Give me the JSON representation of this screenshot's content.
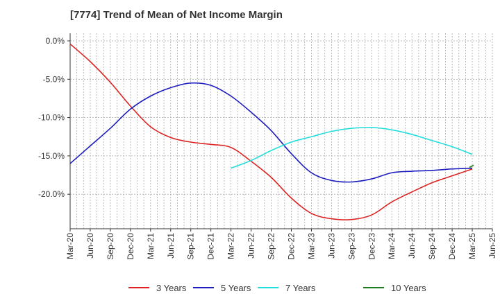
{
  "title": "[7774]  Trend of Mean of Net Income Margin",
  "chart_data": {
    "type": "line",
    "title": "[7774]  Trend of Mean of Net Income Margin",
    "xlabel": "",
    "ylabel": "",
    "ylim": [
      -23.5,
      0.0
    ],
    "y_ticks": [
      0.0,
      -5.0,
      -10.0,
      -15.0,
      -20.0
    ],
    "y_tick_labels": [
      "0.0%",
      "-5.0%",
      "-10.0%",
      "-15.0%",
      "-20.0%"
    ],
    "x_tick_labels": [
      "Mar-20",
      "Jun-20",
      "Sep-20",
      "Dec-20",
      "Mar-21",
      "Jun-21",
      "Sep-21",
      "Dec-21",
      "Mar-22",
      "Jun-22",
      "Sep-22",
      "Dec-22",
      "Mar-23",
      "Jun-23",
      "Sep-23",
      "Dec-23",
      "Mar-24",
      "Jun-24",
      "Sep-24",
      "Dec-24",
      "Mar-25",
      "Jun-25"
    ],
    "grid": true,
    "legend_position": "bottom",
    "series": [
      {
        "name": "3 Years",
        "color": "#dd2222",
        "x": [
          "Mar-20",
          "Jun-20",
          "Sep-20",
          "Dec-20",
          "Mar-21",
          "Jun-21",
          "Sep-21",
          "Dec-21",
          "Mar-22",
          "Jun-22",
          "Sep-22",
          "Dec-22",
          "Mar-23",
          "Jun-23",
          "Sep-23",
          "Dec-23",
          "Mar-24",
          "Jun-24",
          "Sep-24",
          "Dec-24",
          "Mar-25"
        ],
        "values": [
          -0.4,
          -2.7,
          -5.4,
          -8.5,
          -11.2,
          -12.6,
          -13.2,
          -13.5,
          -13.9,
          -15.7,
          -17.8,
          -20.5,
          -22.5,
          -23.2,
          -23.3,
          -22.7,
          -21.0,
          -19.7,
          -18.5,
          -17.6,
          -16.7
        ]
      },
      {
        "name": "5 Years",
        "color": "#1c1cbf",
        "x": [
          "Mar-20",
          "Jun-20",
          "Sep-20",
          "Dec-20",
          "Mar-21",
          "Jun-21",
          "Sep-21",
          "Dec-21",
          "Mar-22",
          "Jun-22",
          "Sep-22",
          "Dec-22",
          "Mar-23",
          "Jun-23",
          "Sep-23",
          "Dec-23",
          "Mar-24",
          "Jun-24",
          "Sep-24",
          "Dec-24",
          "Mar-25"
        ],
        "values": [
          -16.0,
          -13.7,
          -11.4,
          -8.9,
          -7.2,
          -6.1,
          -5.5,
          -5.8,
          -7.2,
          -9.3,
          -11.7,
          -14.7,
          -17.2,
          -18.2,
          -18.4,
          -18.0,
          -17.2,
          -17.0,
          -16.9,
          -16.7,
          -16.6
        ]
      },
      {
        "name": "7 Years",
        "color": "#22dddd",
        "x": [
          "Mar-22",
          "Jun-22",
          "Sep-22",
          "Dec-22",
          "Mar-23",
          "Jun-23",
          "Sep-23",
          "Dec-23",
          "Mar-24",
          "Jun-24",
          "Sep-24",
          "Dec-24",
          "Mar-25"
        ],
        "values": [
          -16.6,
          -15.6,
          -14.3,
          -13.2,
          -12.5,
          -11.8,
          -11.4,
          -11.3,
          -11.6,
          -12.2,
          -13.0,
          -13.8,
          -14.8
        ]
      },
      {
        "name": "10 Years",
        "color": "#1e7e1e",
        "x": [
          "Mar-25"
        ],
        "values": [
          -16.4
        ]
      }
    ]
  }
}
